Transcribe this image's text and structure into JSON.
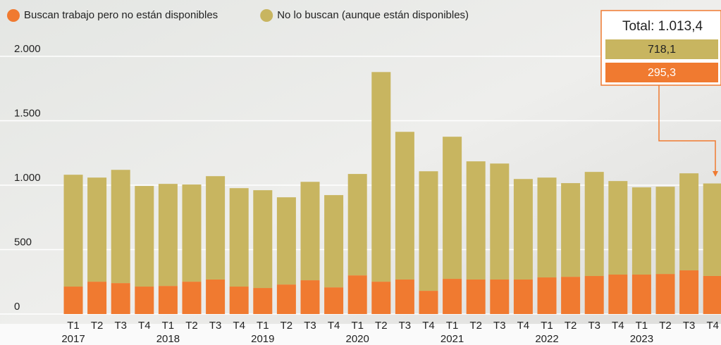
{
  "chart_data": {
    "type": "stacked_bar",
    "categories": [
      "T1",
      "T2",
      "T3",
      "T4",
      "T1",
      "T2",
      "T3",
      "T4",
      "T1",
      "T2",
      "T3",
      "T4",
      "T1",
      "T2",
      "T3",
      "T4",
      "T1",
      "T2",
      "T3",
      "T4",
      "T1",
      "T2",
      "T3",
      "T4",
      "T1",
      "T2",
      "T3",
      "T4"
    ],
    "years": [
      "2017",
      "2018",
      "2019",
      "2020",
      "2021",
      "2022",
      "2023"
    ],
    "series": [
      {
        "name": "Buscan trabajo pero no están disponibles",
        "color": "#f07a30",
        "values": [
          213,
          251,
          240,
          213,
          218,
          251,
          268,
          213,
          202,
          229,
          262,
          207,
          300,
          251,
          268,
          180,
          273,
          268,
          268,
          268,
          284,
          289,
          295,
          306,
          306,
          311,
          339,
          295.3
        ],
        "value_labels": [
          null,
          null,
          null,
          null,
          null,
          null,
          null,
          null,
          null,
          null,
          null,
          null,
          null,
          null,
          null,
          null,
          null,
          null,
          null,
          null,
          null,
          null,
          null,
          null,
          null,
          null,
          null,
          "295,3"
        ]
      },
      {
        "name": "No lo buscan (aunque están disponibles)",
        "color": "#c8b560",
        "values": [
          868,
          808,
          879,
          781,
          792,
          754,
          802,
          764,
          759,
          677,
          764,
          716,
          787,
          1627,
          1146,
          928,
          1103,
          917,
          900,
          780,
          775,
          727,
          808,
          726,
          677,
          677,
          753,
          718.1
        ],
        "value_labels": [
          null,
          null,
          null,
          null,
          null,
          null,
          null,
          null,
          null,
          null,
          null,
          null,
          null,
          null,
          null,
          null,
          null,
          null,
          null,
          null,
          null,
          null,
          null,
          null,
          null,
          null,
          null,
          "718,1"
        ]
      }
    ],
    "annotation": "Total: 1.013,4",
    "ylim": [
      0,
      2000
    ],
    "yticks": [
      0,
      500,
      {
        "value": 1000,
        "label": "1.000"
      },
      {
        "value": 1500,
        "label": "1.500"
      },
      {
        "value": 2000,
        "label": "2.000"
      }
    ],
    "grid": true
  }
}
